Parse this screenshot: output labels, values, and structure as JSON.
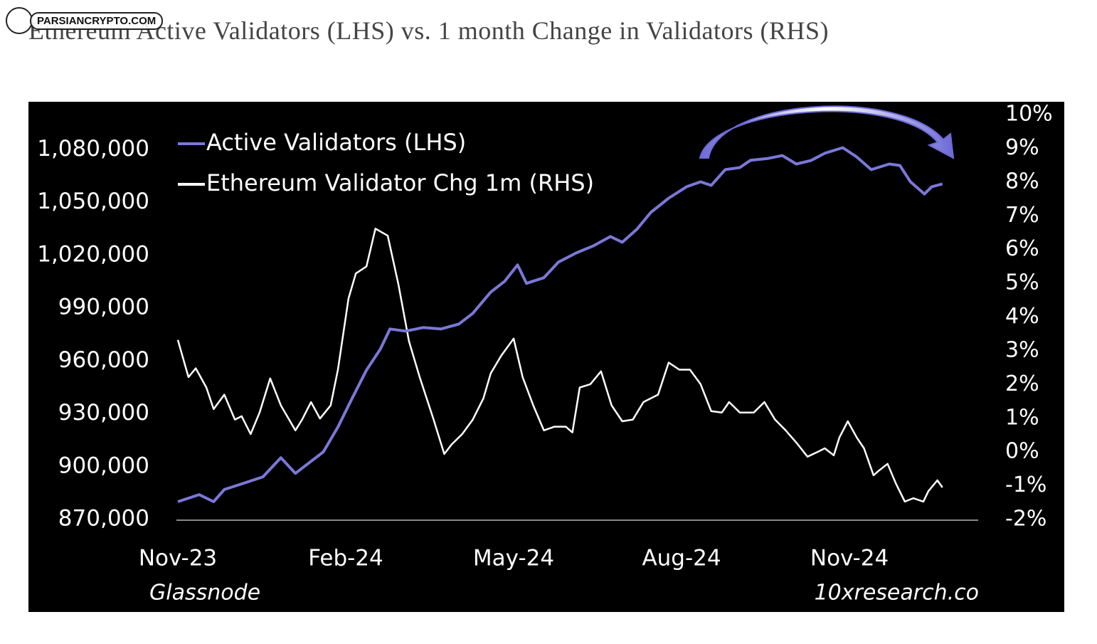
{
  "watermark": "PARSIANCRYPTO.COM",
  "chart_data": {
    "type": "line",
    "title": "Ethereum Active Validators (LHS) vs. 1 month Change in Validators (RHS)",
    "source": "Glassnode",
    "credit": "10xresearch.co",
    "legend": "upper left",
    "xlim": [
      0,
      14.3
    ],
    "xticks": [
      {
        "value": 0,
        "label": "Nov-23"
      },
      {
        "value": 3,
        "label": "Feb-24"
      },
      {
        "value": 6,
        "label": "May-24"
      },
      {
        "value": 9,
        "label": "Aug-24"
      },
      {
        "value": 12,
        "label": "Nov-24"
      }
    ],
    "ylim": [
      870000,
      1100000
    ],
    "yticks": [
      {
        "value": 870000,
        "label": "870,000"
      },
      {
        "value": 900000,
        "label": "900,000"
      },
      {
        "value": 930000,
        "label": "930,000"
      },
      {
        "value": 960000,
        "label": "960,000"
      },
      {
        "value": 990000,
        "label": "990,000"
      },
      {
        "value": 1020000,
        "label": "1,020,000"
      },
      {
        "value": 1050000,
        "label": "1,050,000"
      },
      {
        "value": 1080000,
        "label": "1,080,000"
      }
    ],
    "y2lim": [
      -2,
      10
    ],
    "y2ticks": [
      {
        "value": -2,
        "label": "-2%"
      },
      {
        "value": -1,
        "label": "-1%"
      },
      {
        "value": 0,
        "label": "0%"
      },
      {
        "value": 1,
        "label": "1%"
      },
      {
        "value": 2,
        "label": "2%"
      },
      {
        "value": 3,
        "label": "3%"
      },
      {
        "value": 4,
        "label": "4%"
      },
      {
        "value": 5,
        "label": "5%"
      },
      {
        "value": 6,
        "label": "6%"
      },
      {
        "value": 7,
        "label": "7%"
      },
      {
        "value": 8,
        "label": "8%"
      },
      {
        "value": 9,
        "label": "9%"
      },
      {
        "value": 10,
        "label": "10%"
      }
    ],
    "series": [
      {
        "name": "Active Validators (LHS)",
        "color": "#7b78d8",
        "x": [
          0,
          0.38,
          0.64,
          0.83,
          1.14,
          1.52,
          1.84,
          2.1,
          2.35,
          2.6,
          2.86,
          3.11,
          3.37,
          3.62,
          3.79,
          4.07,
          4.38,
          4.7,
          5.02,
          5.27,
          5.59,
          5.84,
          6.07,
          6.23,
          6.54,
          6.8,
          7.12,
          7.43,
          7.73,
          7.94,
          8.2,
          8.45,
          8.77,
          9.09,
          9.34,
          9.53,
          9.78,
          10.04,
          10.23,
          10.55,
          10.8,
          11.05,
          11.31,
          11.56,
          11.88,
          12.13,
          12.39,
          12.71,
          12.9,
          13.09,
          13.34,
          13.47,
          13.66
        ],
        "values": [
          880100,
          884100,
          880100,
          887000,
          890200,
          894200,
          905100,
          896200,
          902300,
          908400,
          922500,
          938600,
          954800,
          966900,
          978200,
          977000,
          979000,
          978200,
          981000,
          987100,
          999200,
          1005300,
          1014600,
          1004100,
          1007300,
          1016200,
          1021400,
          1025500,
          1030700,
          1027500,
          1034800,
          1044400,
          1052500,
          1059000,
          1061800,
          1059800,
          1068700,
          1069900,
          1074000,
          1075100,
          1076700,
          1071900,
          1073900,
          1078000,
          1081200,
          1075900,
          1068700,
          1071900,
          1071100,
          1061800,
          1054900,
          1059000,
          1060600
        ]
      },
      {
        "name": "Ethereum Validator Chg 1m (RHS)",
        "color": "#ffffff",
        "axis": "y2",
        "x": [
          0,
          0.19,
          0.32,
          0.51,
          0.64,
          0.83,
          1.02,
          1.14,
          1.3,
          1.46,
          1.65,
          1.84,
          2.1,
          2.22,
          2.38,
          2.54,
          2.73,
          2.86,
          3.05,
          3.18,
          3.37,
          3.53,
          3.75,
          3.94,
          4.13,
          4.32,
          4.57,
          4.76,
          4.89,
          5.08,
          5.27,
          5.46,
          5.59,
          5.78,
          6.0,
          6.16,
          6.35,
          6.54,
          6.73,
          6.93,
          7.05,
          7.18,
          7.37,
          7.56,
          7.75,
          7.94,
          8.13,
          8.32,
          8.58,
          8.77,
          8.96,
          9.15,
          9.34,
          9.53,
          9.72,
          9.85,
          10.04,
          10.29,
          10.48,
          10.67,
          10.86,
          11.05,
          11.25,
          11.44,
          11.56,
          11.72,
          11.82,
          11.97,
          12.13,
          12.26,
          12.43,
          12.52,
          12.68,
          12.83,
          12.99,
          13.14,
          13.32,
          13.41,
          13.57,
          13.66
        ],
        "values": [
          3.32,
          2.22,
          2.48,
          1.91,
          1.27,
          1.7,
          0.96,
          1.06,
          0.53,
          1.17,
          2.18,
          1.38,
          0.64,
          0.96,
          1.48,
          0.99,
          1.38,
          2.44,
          4.55,
          5.29,
          5.5,
          6.62,
          6.41,
          4.97,
          3.28,
          2.22,
          0.96,
          -0.06,
          0.22,
          0.53,
          0.96,
          1.59,
          2.33,
          2.86,
          3.36,
          2.22,
          1.38,
          0.64,
          0.75,
          0.75,
          0.58,
          1.91,
          2.01,
          2.39,
          1.38,
          0.91,
          0.96,
          1.48,
          1.7,
          2.65,
          2.44,
          2.44,
          2.01,
          1.21,
          1.17,
          1.48,
          1.17,
          1.17,
          1.48,
          0.96,
          0.64,
          0.28,
          -0.14,
          0.01,
          0.11,
          -0.1,
          0.43,
          0.91,
          0.43,
          0.11,
          -0.69,
          -0.56,
          -0.35,
          -0.94,
          -1.47,
          -1.37,
          -1.47,
          -1.16,
          -0.84,
          -1.05
        ]
      }
    ]
  }
}
